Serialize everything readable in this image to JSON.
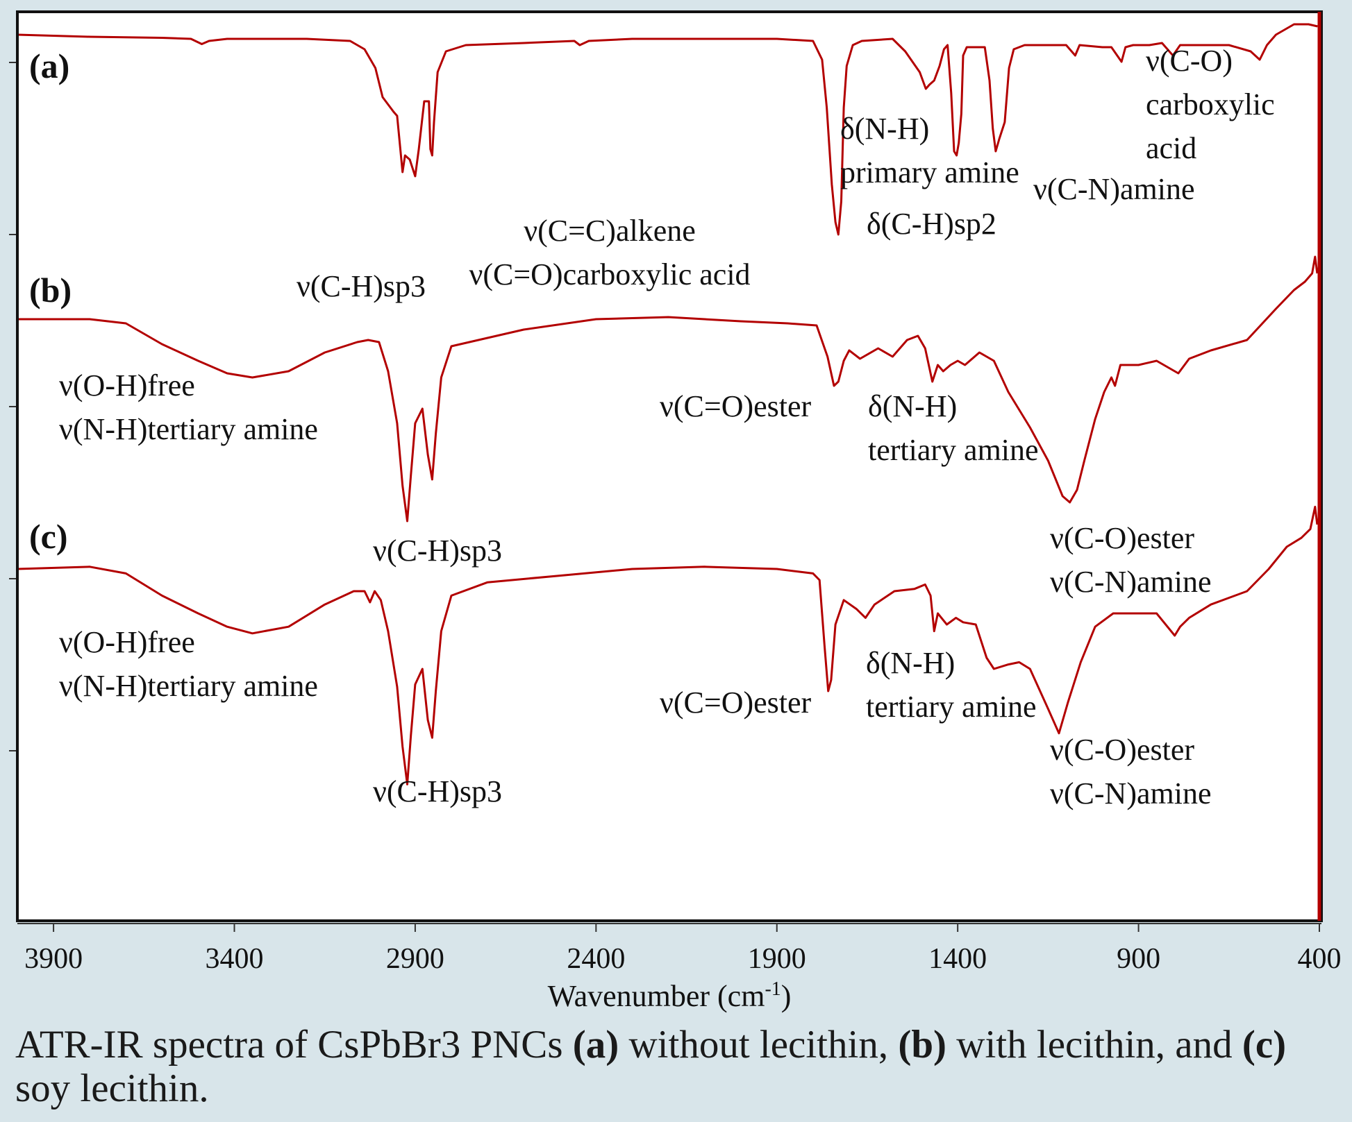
{
  "chart_data": {
    "type": "line",
    "xlabel": "Wavenumber (cm",
    "xlabel_sup": "-1",
    "xlabel_close": ")",
    "xlim": [
      4000,
      400
    ],
    "x_ticks": [
      "3900",
      "3400",
      "2900",
      "2400",
      "1900",
      "1400",
      "900",
      "400"
    ],
    "x_tick_values": [
      3900,
      3400,
      2900,
      2400,
      1900,
      1400,
      900,
      400
    ],
    "line_color": "#b30000",
    "series": [
      {
        "name": "(a)",
        "points": [
          [
            4000,
            0.0
          ],
          [
            3800,
            0.01
          ],
          [
            3600,
            0.015
          ],
          [
            3520,
            0.02
          ],
          [
            3490,
            0.045
          ],
          [
            3470,
            0.03
          ],
          [
            3420,
            0.02
          ],
          [
            3200,
            0.02
          ],
          [
            3080,
            0.03
          ],
          [
            3040,
            0.07
          ],
          [
            3010,
            0.16
          ],
          [
            2990,
            0.3
          ],
          [
            2960,
            0.37
          ],
          [
            2950,
            0.39
          ],
          [
            2935,
            0.66
          ],
          [
            2928,
            0.58
          ],
          [
            2915,
            0.6
          ],
          [
            2900,
            0.68
          ],
          [
            2890,
            0.55
          ],
          [
            2875,
            0.32
          ],
          [
            2862,
            0.32
          ],
          [
            2858,
            0.55
          ],
          [
            2853,
            0.58
          ],
          [
            2848,
            0.42
          ],
          [
            2838,
            0.18
          ],
          [
            2815,
            0.08
          ],
          [
            2760,
            0.05
          ],
          [
            2600,
            0.04
          ],
          [
            2460,
            0.03
          ],
          [
            2445,
            0.05
          ],
          [
            2420,
            0.03
          ],
          [
            2300,
            0.02
          ],
          [
            2100,
            0.02
          ],
          [
            1900,
            0.02
          ],
          [
            1800,
            0.03
          ],
          [
            1775,
            0.12
          ],
          [
            1762,
            0.35
          ],
          [
            1748,
            0.72
          ],
          [
            1738,
            0.9
          ],
          [
            1730,
            0.96
          ],
          [
            1722,
            0.8
          ],
          [
            1715,
            0.35
          ],
          [
            1707,
            0.15
          ],
          [
            1690,
            0.05
          ],
          [
            1665,
            0.03
          ],
          [
            1580,
            0.02
          ],
          [
            1545,
            0.08
          ],
          [
            1505,
            0.18
          ],
          [
            1488,
            0.26
          ],
          [
            1478,
            0.24
          ],
          [
            1465,
            0.22
          ],
          [
            1450,
            0.15
          ],
          [
            1438,
            0.07
          ],
          [
            1428,
            0.05
          ],
          [
            1418,
            0.28
          ],
          [
            1410,
            0.56
          ],
          [
            1403,
            0.58
          ],
          [
            1397,
            0.52
          ],
          [
            1390,
            0.38
          ],
          [
            1385,
            0.1
          ],
          [
            1375,
            0.06
          ],
          [
            1325,
            0.06
          ],
          [
            1312,
            0.22
          ],
          [
            1303,
            0.45
          ],
          [
            1295,
            0.56
          ],
          [
            1285,
            0.5
          ],
          [
            1270,
            0.42
          ],
          [
            1258,
            0.16
          ],
          [
            1245,
            0.07
          ],
          [
            1215,
            0.05
          ],
          [
            1100,
            0.05
          ],
          [
            1075,
            0.1
          ],
          [
            1063,
            0.05
          ],
          [
            1000,
            0.06
          ],
          [
            975,
            0.06
          ],
          [
            947,
            0.13
          ],
          [
            936,
            0.06
          ],
          [
            915,
            0.05
          ],
          [
            870,
            0.05
          ],
          [
            835,
            0.04
          ],
          [
            805,
            0.1
          ],
          [
            785,
            0.05
          ],
          [
            650,
            0.05
          ],
          [
            590,
            0.08
          ],
          [
            565,
            0.12
          ],
          [
            545,
            0.05
          ],
          [
            520,
            0.0
          ],
          [
            470,
            -0.05
          ],
          [
            430,
            -0.05
          ],
          [
            405,
            -0.04
          ]
        ]
      },
      {
        "name": "(b)",
        "points": [
          [
            4000,
            0.0
          ],
          [
            3800,
            0.0
          ],
          [
            3700,
            0.02
          ],
          [
            3600,
            0.12
          ],
          [
            3500,
            0.2
          ],
          [
            3420,
            0.26
          ],
          [
            3350,
            0.28
          ],
          [
            3250,
            0.25
          ],
          [
            3150,
            0.16
          ],
          [
            3060,
            0.11
          ],
          [
            3030,
            0.1
          ],
          [
            3000,
            0.11
          ],
          [
            2975,
            0.25
          ],
          [
            2950,
            0.5
          ],
          [
            2935,
            0.8
          ],
          [
            2922,
            0.97
          ],
          [
            2912,
            0.75
          ],
          [
            2900,
            0.5
          ],
          [
            2880,
            0.43
          ],
          [
            2865,
            0.65
          ],
          [
            2853,
            0.77
          ],
          [
            2843,
            0.55
          ],
          [
            2828,
            0.28
          ],
          [
            2800,
            0.13
          ],
          [
            2750,
            0.11
          ],
          [
            2600,
            0.05
          ],
          [
            2400,
            0.0
          ],
          [
            2200,
            -0.01
          ],
          [
            2000,
            0.01
          ],
          [
            1870,
            0.02
          ],
          [
            1790,
            0.03
          ],
          [
            1760,
            0.18
          ],
          [
            1742,
            0.32
          ],
          [
            1730,
            0.3
          ],
          [
            1715,
            0.2
          ],
          [
            1700,
            0.15
          ],
          [
            1670,
            0.19
          ],
          [
            1620,
            0.14
          ],
          [
            1580,
            0.18
          ],
          [
            1540,
            0.1
          ],
          [
            1510,
            0.08
          ],
          [
            1490,
            0.14
          ],
          [
            1470,
            0.3
          ],
          [
            1455,
            0.22
          ],
          [
            1440,
            0.25
          ],
          [
            1420,
            0.22
          ],
          [
            1400,
            0.2
          ],
          [
            1380,
            0.22
          ],
          [
            1340,
            0.16
          ],
          [
            1300,
            0.2
          ],
          [
            1260,
            0.35
          ],
          [
            1200,
            0.52
          ],
          [
            1150,
            0.68
          ],
          [
            1110,
            0.85
          ],
          [
            1090,
            0.88
          ],
          [
            1070,
            0.82
          ],
          [
            1050,
            0.68
          ],
          [
            1020,
            0.48
          ],
          [
            995,
            0.35
          ],
          [
            975,
            0.28
          ],
          [
            965,
            0.32
          ],
          [
            950,
            0.22
          ],
          [
            900,
            0.22
          ],
          [
            850,
            0.2
          ],
          [
            790,
            0.26
          ],
          [
            760,
            0.19
          ],
          [
            700,
            0.15
          ],
          [
            600,
            0.1
          ],
          [
            520,
            -0.05
          ],
          [
            470,
            -0.14
          ],
          [
            440,
            -0.18
          ],
          [
            420,
            -0.22
          ],
          [
            412,
            -0.3
          ],
          [
            406,
            -0.22
          ]
        ]
      },
      {
        "name": "(c)",
        "points": [
          [
            4000,
            0.0
          ],
          [
            3800,
            -0.01
          ],
          [
            3700,
            0.02
          ],
          [
            3600,
            0.12
          ],
          [
            3500,
            0.2
          ],
          [
            3420,
            0.26
          ],
          [
            3350,
            0.29
          ],
          [
            3250,
            0.26
          ],
          [
            3150,
            0.16
          ],
          [
            3070,
            0.1
          ],
          [
            3040,
            0.1
          ],
          [
            3025,
            0.15
          ],
          [
            3012,
            0.1
          ],
          [
            2995,
            0.14
          ],
          [
            2975,
            0.28
          ],
          [
            2950,
            0.53
          ],
          [
            2935,
            0.8
          ],
          [
            2922,
            0.97
          ],
          [
            2912,
            0.75
          ],
          [
            2900,
            0.52
          ],
          [
            2880,
            0.45
          ],
          [
            2865,
            0.68
          ],
          [
            2853,
            0.76
          ],
          [
            2843,
            0.55
          ],
          [
            2828,
            0.28
          ],
          [
            2800,
            0.12
          ],
          [
            2700,
            0.06
          ],
          [
            2500,
            0.03
          ],
          [
            2300,
            0.0
          ],
          [
            2100,
            -0.01
          ],
          [
            1900,
            0.0
          ],
          [
            1800,
            0.02
          ],
          [
            1782,
            0.05
          ],
          [
            1768,
            0.35
          ],
          [
            1758,
            0.55
          ],
          [
            1750,
            0.5
          ],
          [
            1738,
            0.25
          ],
          [
            1715,
            0.14
          ],
          [
            1680,
            0.18
          ],
          [
            1655,
            0.22
          ],
          [
            1630,
            0.16
          ],
          [
            1575,
            0.1
          ],
          [
            1520,
            0.09
          ],
          [
            1490,
            0.07
          ],
          [
            1475,
            0.12
          ],
          [
            1465,
            0.28
          ],
          [
            1455,
            0.2
          ],
          [
            1430,
            0.25
          ],
          [
            1405,
            0.22
          ],
          [
            1385,
            0.24
          ],
          [
            1350,
            0.25
          ],
          [
            1320,
            0.4
          ],
          [
            1300,
            0.45
          ],
          [
            1260,
            0.43
          ],
          [
            1230,
            0.42
          ],
          [
            1200,
            0.45
          ],
          [
            1150,
            0.63
          ],
          [
            1120,
            0.74
          ],
          [
            1095,
            0.6
          ],
          [
            1060,
            0.42
          ],
          [
            1020,
            0.26
          ],
          [
            970,
            0.2
          ],
          [
            910,
            0.2
          ],
          [
            850,
            0.2
          ],
          [
            800,
            0.3
          ],
          [
            785,
            0.26
          ],
          [
            760,
            0.22
          ],
          [
            700,
            0.16
          ],
          [
            600,
            0.1
          ],
          [
            540,
            0.0
          ],
          [
            490,
            -0.1
          ],
          [
            450,
            -0.14
          ],
          [
            425,
            -0.18
          ],
          [
            412,
            -0.28
          ],
          [
            406,
            -0.2
          ]
        ]
      }
    ],
    "annotations": [
      {
        "series": "(a)",
        "lines": [
          "ν(C-H)sp3"
        ]
      },
      {
        "series": "(a)",
        "lines": [
          "ν(C=C)alkene",
          "ν(C=O)carboxylic acid"
        ]
      },
      {
        "series": "(a)",
        "lines": [
          "δ(N-H)",
          "primary amine"
        ]
      },
      {
        "series": "(a)",
        "lines": [
          "δ(C-H)sp2"
        ]
      },
      {
        "series": "(a)",
        "lines": [
          "ν(C-N)amine"
        ]
      },
      {
        "series": "(a)",
        "lines": [
          "ν(C-O)",
          "carboxylic",
          "acid"
        ]
      },
      {
        "series": "(b)",
        "lines": [
          "ν(O-H)free",
          "ν(N-H)tertiary amine"
        ]
      },
      {
        "series": "(b)",
        "lines": [
          "ν(C-H)sp3"
        ]
      },
      {
        "series": "(b)",
        "lines": [
          "ν(C=O)ester"
        ]
      },
      {
        "series": "(b)",
        "lines": [
          "δ(N-H)",
          "tertiary amine"
        ]
      },
      {
        "series": "(b)",
        "lines": [
          "ν(C-O)ester",
          "ν(C-N)amine"
        ]
      },
      {
        "series": "(c)",
        "lines": [
          "ν(O-H)free",
          "ν(N-H)tertiary amine"
        ]
      },
      {
        "series": "(c)",
        "lines": [
          "ν(C-H)sp3"
        ]
      },
      {
        "series": "(c)",
        "lines": [
          "ν(C=O)ester"
        ]
      },
      {
        "series": "(c)",
        "lines": [
          "δ(N-H)",
          "tertiary amine"
        ]
      },
      {
        "series": "(c)",
        "lines": [
          "ν(C-O)ester",
          "ν(C-N)amine"
        ]
      }
    ]
  },
  "caption": {
    "part1": "ATR-IR spectra of CsPbBr3 PNCs ",
    "label_a": "(a)",
    "part2": " without lecithin, ",
    "label_b": "(b)",
    "part3": " with lecithin, and ",
    "label_c": "(c)",
    "part4": " soy lecithin."
  }
}
